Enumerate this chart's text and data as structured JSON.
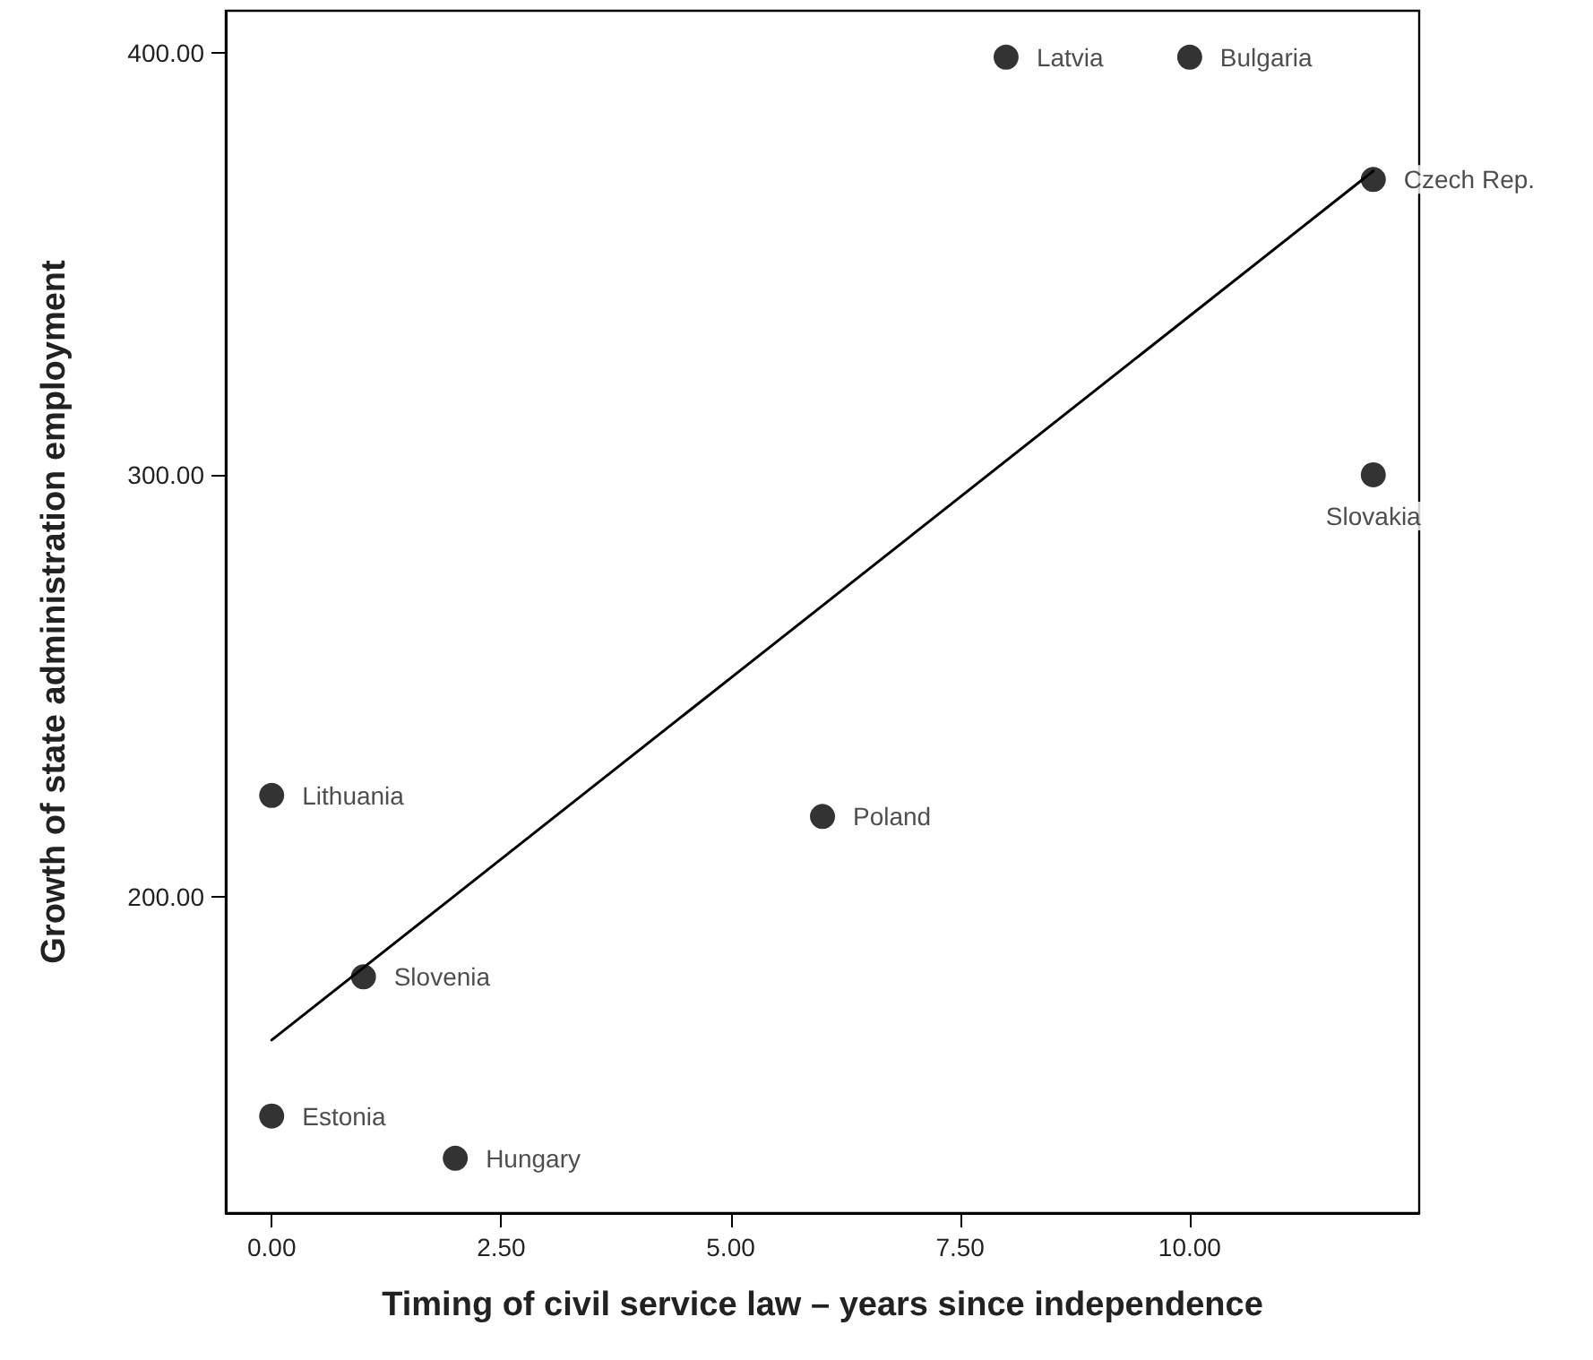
{
  "chart_data": {
    "type": "scatter",
    "xlabel": "Timing of civil service law – years since independence",
    "ylabel": "Growth of state administration employment",
    "xlim": [
      -0.5,
      12.5
    ],
    "ylim": [
      125,
      410
    ],
    "xticks": [
      {
        "value": 0,
        "label": "0.00"
      },
      {
        "value": 2.5,
        "label": "2.50"
      },
      {
        "value": 5,
        "label": "5.00"
      },
      {
        "value": 7.5,
        "label": "7.50"
      },
      {
        "value": 10,
        "label": "10.00"
      }
    ],
    "yticks": [
      {
        "value": 200,
        "label": "200.00"
      },
      {
        "value": 300,
        "label": "300.00"
      },
      {
        "value": 400,
        "label": "400.00"
      }
    ],
    "marker": "circle",
    "series": [
      {
        "color": "#000000",
        "x": [
          8,
          10,
          12,
          12,
          0,
          6,
          1,
          0,
          2
        ],
        "values": [
          399,
          399,
          370,
          300,
          224,
          219,
          181,
          148,
          138
        ],
        "value_labels": [
          "Latvia",
          "Bulgaria",
          "Czech Rep.",
          "Slovakia",
          "Lithuania",
          "Poland",
          "Slovenia",
          "Estonia",
          "Hungary"
        ]
      },
      {
        "type": "line",
        "color": "#000000",
        "x": [
          0,
          12
        ],
        "values": [
          166,
          372
        ],
        "marker": "none",
        "line_style": "solid"
      }
    ]
  }
}
